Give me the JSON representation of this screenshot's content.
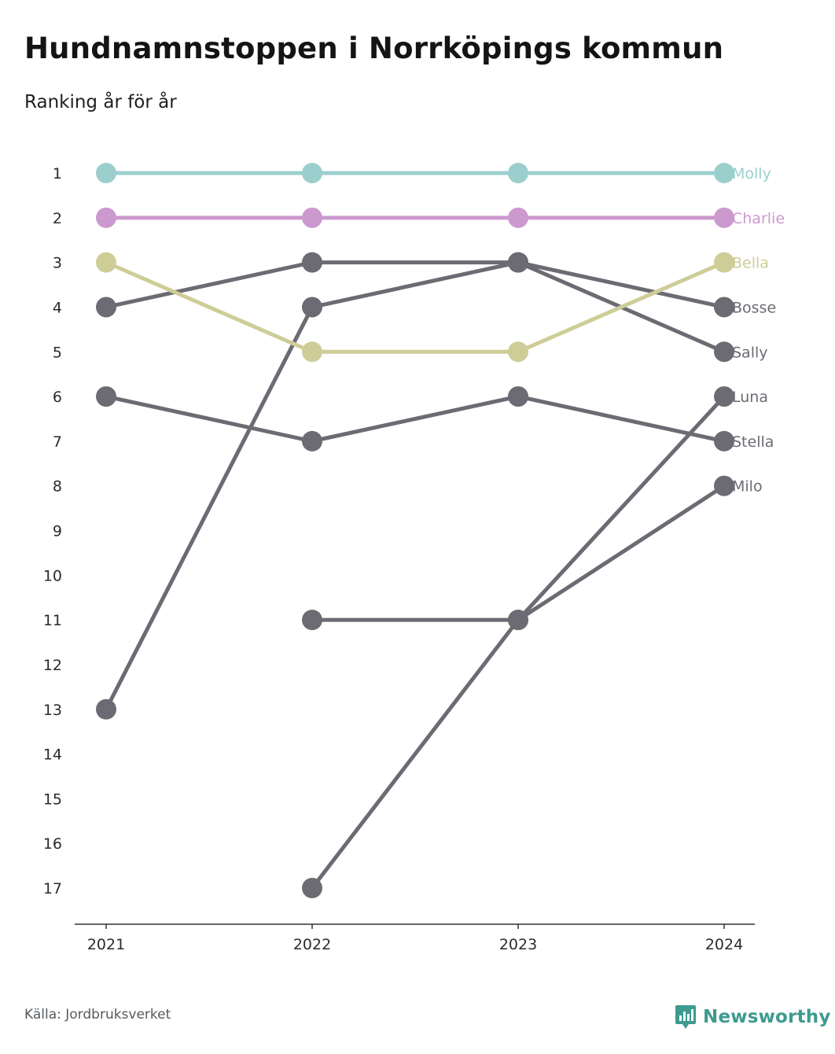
{
  "chart_data": {
    "type": "line",
    "title": "Hundnamnstoppen i Norrköpings kommun",
    "subtitle": "Ranking år för år",
    "x": [
      "2021",
      "2022",
      "2023",
      "2024"
    ],
    "y_ticks": [
      1,
      2,
      3,
      4,
      5,
      6,
      7,
      8,
      9,
      10,
      11,
      12,
      13,
      14,
      15,
      16,
      17
    ],
    "ylim": [
      1,
      17
    ],
    "y_inverted": true,
    "grid": false,
    "series": [
      {
        "name": "Molly",
        "values": [
          1,
          1,
          1,
          1
        ],
        "color": "#9bcfcd"
      },
      {
        "name": "Charlie",
        "values": [
          2,
          2,
          2,
          2
        ],
        "color": "#cc99cf"
      },
      {
        "name": "Bella",
        "values": [
          3,
          5,
          5,
          3
        ],
        "color": "#cecd98"
      },
      {
        "name": "Bosse",
        "values": [
          4,
          3,
          3,
          4
        ],
        "color": "#6c6b73"
      },
      {
        "name": "Sally",
        "values": [
          13,
          4,
          3,
          5
        ],
        "color": "#6c6b73"
      },
      {
        "name": "Luna",
        "values": [
          null,
          17,
          11,
          6
        ],
        "color": "#6c6b73"
      },
      {
        "name": "Stella",
        "values": [
          6,
          7,
          6,
          7
        ],
        "color": "#6c6b73"
      },
      {
        "name": "Milo",
        "values": [
          null,
          11,
          11,
          8
        ],
        "color": "#6c6b73"
      }
    ]
  },
  "footer": {
    "source": "Källa: Jordbruksverket",
    "brand": "Newsworthy",
    "brand_icon": "newsworthy-logo-icon",
    "brand_color": "#3d9b8f"
  }
}
